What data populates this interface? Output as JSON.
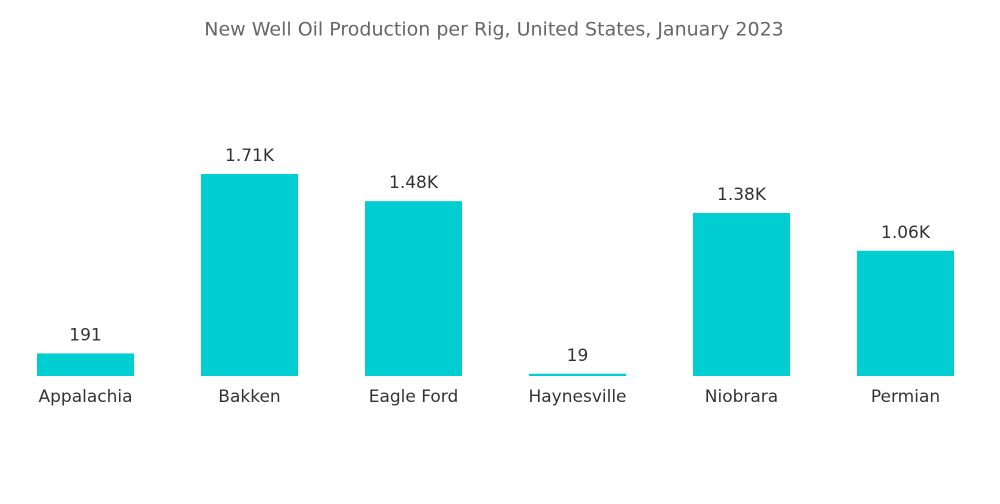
{
  "chart_data": {
    "type": "bar",
    "title": "New Well Oil Production per Rig, United States, January 2023",
    "categories": [
      "Appalachia",
      "Bakken",
      "Eagle Ford",
      "Haynesville",
      "Niobrara",
      "Permian"
    ],
    "values": [
      191,
      1710,
      1480,
      19,
      1380,
      1060
    ],
    "value_labels": [
      "191",
      "1.71K",
      "1.48K",
      "19",
      "1.38K",
      "1.06K"
    ],
    "color": "#00ced1"
  }
}
